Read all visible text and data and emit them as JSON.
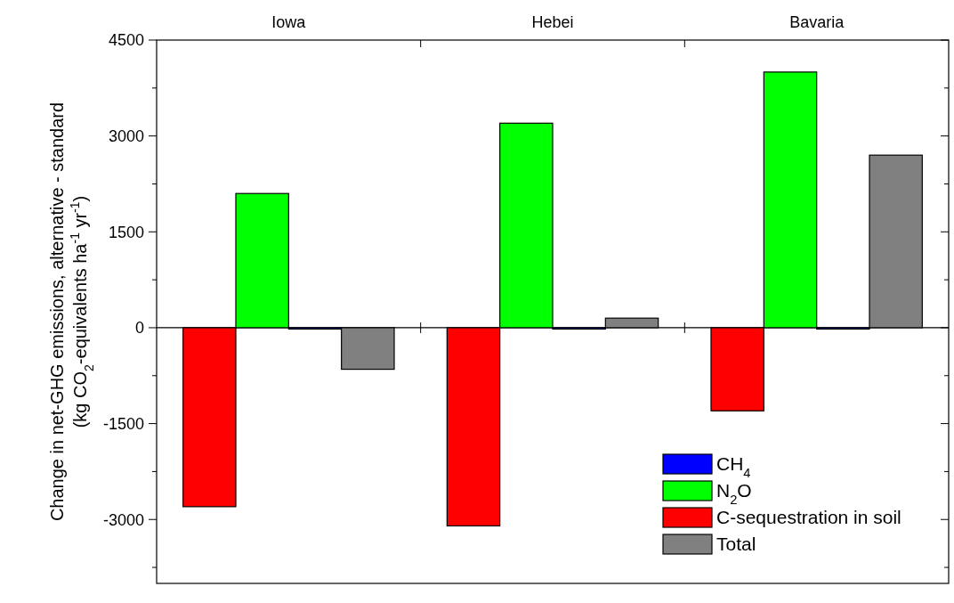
{
  "chart_data": {
    "type": "bar",
    "categories": [
      "Iowa",
      "Hebei",
      "Bavaria"
    ],
    "ylabel": "Change in net-GHG emissions, alternative - standard\n(kg CO$_{2}$-equivalents ha$^{-1}$ yr$^{-1}$)",
    "series": [
      {
        "name": "C-sequestration in soil",
        "color": "#ff0000",
        "values": [
          -2800,
          -3100,
          -1300
        ]
      },
      {
        "name": "N$_{2}$O",
        "color": "#00ff00",
        "values": [
          2100,
          3200,
          4000
        ]
      },
      {
        "name": "CH$_{4}$",
        "color": "#0000ff",
        "values": [
          0,
          0,
          0
        ]
      },
      {
        "name": "Total",
        "color": "#808080",
        "values": [
          -650,
          150,
          2700
        ]
      }
    ],
    "ylim": [
      -4000,
      4500
    ],
    "yticks": [
      {
        "value": -3750,
        "label": null
      },
      -3000,
      {
        "value": -2250,
        "label": null
      },
      -1500,
      {
        "value": -750,
        "label": null
      },
      0,
      {
        "value": 750,
        "label": null
      },
      1500,
      {
        "value": 2250,
        "label": null
      },
      3000,
      {
        "value": 3750,
        "label": null
      },
      4500
    ],
    "legend": "bottom right"
  }
}
